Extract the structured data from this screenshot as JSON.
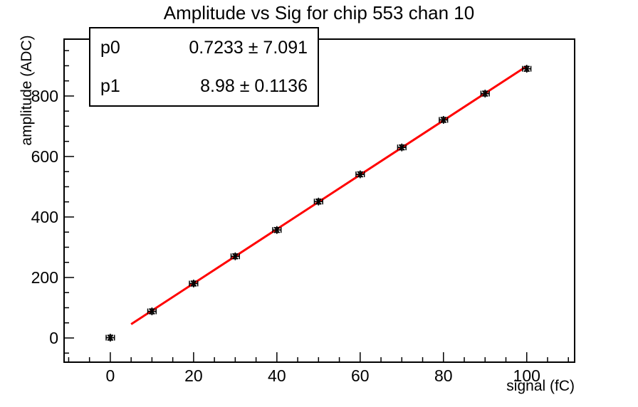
{
  "title": "Amplitude vs Sig for chip 553 chan 10",
  "stats_box": {
    "rows": [
      {
        "label": "p0",
        "value": "0.7233 ± 7.091"
      },
      {
        "label": "p1",
        "value": "8.98 ± 0.1136"
      }
    ]
  },
  "chart_data": {
    "type": "scatter",
    "title": "Amplitude vs Sig for chip 553 chan 10",
    "xlabel": "signal (fC)",
    "ylabel": "amplitude (ADC)",
    "xlim": [
      -11.1,
      111.5
    ],
    "ylim": [
      -80,
      988
    ],
    "x_major_ticks": [
      0,
      20,
      40,
      60,
      80,
      100
    ],
    "x_minor_step": 5,
    "x_minor_range": [
      -10,
      110
    ],
    "y_major_ticks": [
      0,
      200,
      400,
      600,
      800
    ],
    "y_minor_step": 50,
    "y_minor_range": [
      -50,
      950
    ],
    "grid": false,
    "legend": "none",
    "series": [
      {
        "name": "data-points",
        "type": "scatter",
        "marker": "asterisk",
        "color": "#000000",
        "x": [
          0,
          10,
          20,
          30,
          40,
          50,
          60,
          70,
          80,
          90,
          100
        ],
        "y": [
          1,
          88,
          180,
          270,
          357,
          451,
          541,
          630,
          721,
          808,
          890
        ],
        "x_err": 1,
        "y_err": 8
      },
      {
        "name": "linear-fit",
        "type": "line",
        "color": "#ff0000",
        "fit": {
          "p0": 0.7233,
          "p0_err": 7.091,
          "p1": 8.98,
          "p1_err": 0.1136,
          "x_start": 5,
          "x_end": 100
        }
      }
    ]
  },
  "colors": {
    "background": "#ffffff",
    "frame": "#000000",
    "marker": "#000000",
    "fit_line": "#ff0000",
    "text": "#000000"
  }
}
